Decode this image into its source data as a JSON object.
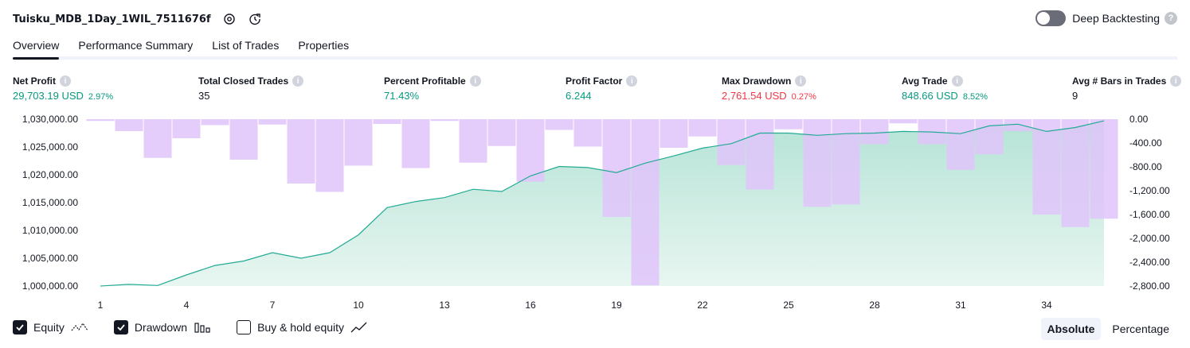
{
  "header": {
    "title": "Tuisku_MDB_1Day_1WIL_7511676f",
    "deep_backtesting_label": "Deep Backtesting"
  },
  "tabs": [
    "Overview",
    "Performance Summary",
    "List of Trades",
    "Properties"
  ],
  "stats": {
    "net_profit": {
      "label": "Net Profit",
      "value": "29,703.19 USD",
      "pct": "2.97%"
    },
    "total_closed_trades": {
      "label": "Total Closed Trades",
      "value": "35"
    },
    "percent_profitable": {
      "label": "Percent Profitable",
      "value": "71.43%"
    },
    "profit_factor": {
      "label": "Profit Factor",
      "value": "6.244"
    },
    "max_drawdown": {
      "label": "Max Drawdown",
      "value": "2,761.54 USD",
      "pct": "0.27%"
    },
    "avg_trade": {
      "label": "Avg Trade",
      "value": "848.66 USD",
      "pct": "8.52%"
    },
    "avg_bars": {
      "label": "Avg # Bars in Trades",
      "value": "9"
    }
  },
  "colors": {
    "positive": "#089981",
    "negative": "#f23645",
    "equity_line": "#22ab94",
    "drawdown_bar": "#e1c4fa"
  },
  "chart_data": {
    "type": "line",
    "x_ticks": [
      "1",
      "4",
      "7",
      "10",
      "13",
      "16",
      "19",
      "22",
      "25",
      "28",
      "31",
      "34"
    ],
    "y_left_ticks": [
      "1,000,000.00",
      "1,005,000.00",
      "1,010,000.00",
      "1,015,000.00",
      "1,020,000.00",
      "1,025,000.00",
      "1,030,000.00"
    ],
    "y_left_range": [
      1000000,
      1030000
    ],
    "y_right_ticks": [
      "0.00",
      "-400.00",
      "-800.00",
      "-1,200.00",
      "-1,600.00",
      "-2,000.00",
      "-2,400.00",
      "-2,800.00"
    ],
    "y_right_range": [
      -2800,
      0
    ],
    "trades": [
      1,
      2,
      3,
      4,
      5,
      6,
      7,
      8,
      9,
      10,
      11,
      12,
      13,
      14,
      15,
      16,
      17,
      18,
      19,
      20,
      21,
      22,
      23,
      24,
      25,
      26,
      27,
      28,
      29,
      30,
      31,
      32,
      33,
      34,
      35,
      36
    ],
    "equity": [
      1000000,
      1000300,
      1000100,
      1002000,
      1003700,
      1004500,
      1006000,
      1005000,
      1006000,
      1009200,
      1014100,
      1015200,
      1015900,
      1017400,
      1017000,
      1019800,
      1021500,
      1021300,
      1020400,
      1022100,
      1023400,
      1024800,
      1025600,
      1027500,
      1027500,
      1027100,
      1027400,
      1027500,
      1027800,
      1027700,
      1027400,
      1028800,
      1029100,
      1027800,
      1028500,
      1029700
    ],
    "drawdown": [
      -30,
      -200,
      -650,
      -320,
      -100,
      -680,
      -90,
      -1080,
      -1220,
      -780,
      -80,
      -820,
      -30,
      -730,
      -450,
      -1050,
      -180,
      -460,
      -1640,
      -2790,
      -480,
      -290,
      -770,
      -1180,
      -170,
      -1470,
      -1430,
      -420,
      -70,
      -420,
      -850,
      -590,
      -200,
      -1600,
      -1810,
      -1670
    ]
  },
  "legend": [
    {
      "label": "Equity",
      "checked": true,
      "icon": "equity-icon"
    },
    {
      "label": "Drawdown",
      "checked": true,
      "icon": "drawdown-icon"
    },
    {
      "label": "Buy & hold equity",
      "checked": false,
      "icon": "buy-hold-icon"
    }
  ],
  "modes": [
    "Absolute",
    "Percentage"
  ]
}
